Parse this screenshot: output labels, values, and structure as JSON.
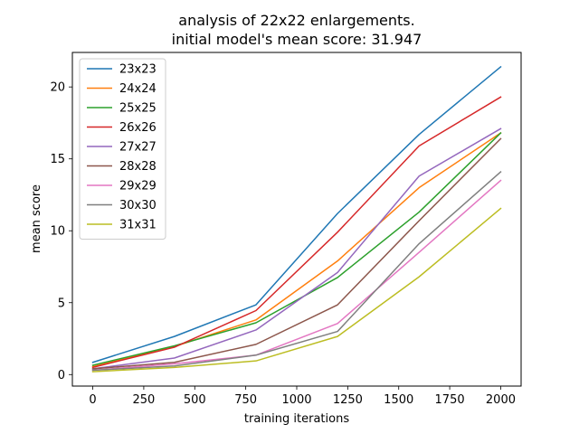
{
  "chart_data": {
    "type": "line",
    "title": "analysis of 22x22 enlargements.",
    "subtitle": "initial model's mean score: 31.947",
    "xlabel": "training iterations",
    "ylabel": "mean score",
    "x": [
      0,
      400,
      800,
      1200,
      1600,
      2000
    ],
    "xlim": [
      -100,
      2100
    ],
    "ylim": [
      -0.8,
      22.4
    ],
    "xticks": [
      0,
      250,
      500,
      750,
      1000,
      1250,
      1500,
      1750,
      2000
    ],
    "yticks": [
      0,
      5,
      10,
      15,
      20
    ],
    "grid": false,
    "legend_position": "top-left",
    "series": [
      {
        "name": "23x23",
        "color": "#1f77b4",
        "values": [
          0.85,
          2.65,
          4.85,
          11.2,
          16.7,
          21.4
        ]
      },
      {
        "name": "24x24",
        "color": "#ff7f0e",
        "values": [
          0.55,
          1.95,
          3.8,
          7.9,
          13.0,
          16.8
        ]
      },
      {
        "name": "25x25",
        "color": "#2ca02c",
        "values": [
          0.65,
          2.0,
          3.6,
          6.75,
          11.3,
          16.8
        ]
      },
      {
        "name": "26x26",
        "color": "#d62728",
        "values": [
          0.5,
          1.9,
          4.45,
          9.9,
          15.9,
          19.3
        ]
      },
      {
        "name": "27x27",
        "color": "#9467bd",
        "values": [
          0.4,
          1.15,
          3.1,
          7.1,
          13.8,
          17.1
        ]
      },
      {
        "name": "28x28",
        "color": "#8c564b",
        "values": [
          0.4,
          0.85,
          2.1,
          4.85,
          10.7,
          16.4
        ]
      },
      {
        "name": "29x29",
        "color": "#e377c2",
        "values": [
          0.3,
          0.75,
          1.35,
          3.55,
          8.5,
          13.5
        ]
      },
      {
        "name": "30x30",
        "color": "#7f7f7f",
        "values": [
          0.3,
          0.6,
          1.35,
          3.0,
          9.1,
          14.1
        ]
      },
      {
        "name": "31x31",
        "color": "#bcbd22",
        "values": [
          0.2,
          0.5,
          0.95,
          2.65,
          6.8,
          11.55
        ]
      }
    ]
  }
}
